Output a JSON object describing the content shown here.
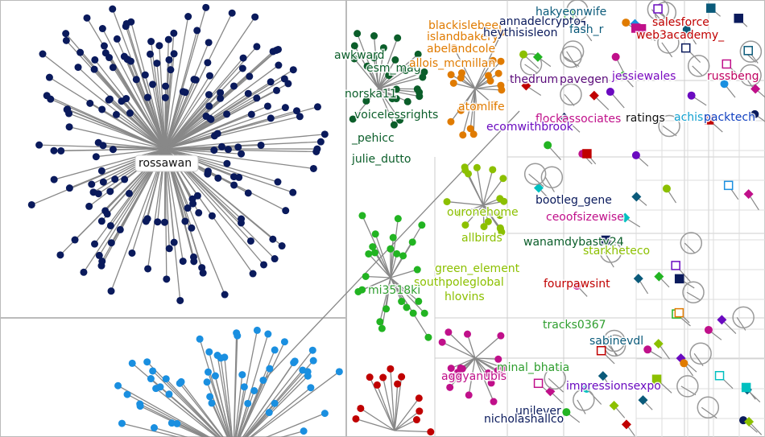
{
  "labels": [
    {
      "text": "rossawan",
      "color": "#111111"
    },
    {
      "text": "awkward",
      "color": "#0b5e2a"
    },
    {
      "text": "esm_mag",
      "color": "#0b5e2a"
    },
    {
      "text": "norska11",
      "color": "#0b5e2a"
    },
    {
      "text": "voicelessrights",
      "color": "#0b5e2a"
    },
    {
      "text": "_pehicc",
      "color": "#0b5e2a"
    },
    {
      "text": "julie_dutto",
      "color": "#0b5e2a"
    },
    {
      "text": "blackislebeer",
      "color": "#e07b00"
    },
    {
      "text": "islandbakery",
      "color": "#e07b00"
    },
    {
      "text": "abelandcole",
      "color": "#e07b00"
    },
    {
      "text": "allois_mcmillan",
      "color": "#e07b00"
    },
    {
      "text": "atomlife",
      "color": "#e07b00"
    },
    {
      "text": "annadelcrypto",
      "color": "#0a1a5c"
    },
    {
      "text": "heythisisleon",
      "color": "#0a1a5c"
    },
    {
      "text": "hakyeonwife",
      "color": "#0a5a7a"
    },
    {
      "text": "fash_r",
      "color": "#0a5a7a"
    },
    {
      "text": "salesforce",
      "color": "#c00000"
    },
    {
      "text": "web3academy_",
      "color": "#c00000"
    },
    {
      "text": "thedrum",
      "color": "#5a0a7a"
    },
    {
      "text": "pavegen",
      "color": "#5a0a7a"
    },
    {
      "text": "jessiewales",
      "color": "#7a0ac0"
    },
    {
      "text": "russbeng",
      "color": "#c00060"
    },
    {
      "text": "flockassociates",
      "color": "#c0108a"
    },
    {
      "text": "ratings",
      "color": "#111111"
    },
    {
      "text": "achisp",
      "color": "#10a0d0"
    },
    {
      "text": "packtech",
      "color": "#1040c0"
    },
    {
      "text": "ecomwithbrook",
      "color": "#6a0ac0"
    },
    {
      "text": "bootleg_gene",
      "color": "#0a1a5c"
    },
    {
      "text": "ouronehome",
      "color": "#8cc000"
    },
    {
      "text": "ceoofsizewise",
      "color": "#c0108a"
    },
    {
      "text": "allbirds",
      "color": "#8cc000"
    },
    {
      "text": "wanamdybasty24",
      "color": "#0b5e2a"
    },
    {
      "text": "starkheteco",
      "color": "#8cc000"
    },
    {
      "text": "green_element",
      "color": "#8cc000"
    },
    {
      "text": "southpoleglobal",
      "color": "#8cc000"
    },
    {
      "text": "hlovins",
      "color": "#8cc000"
    },
    {
      "text": "mi3518ki",
      "color": "#2e9e2e"
    },
    {
      "text": "fourpawsint",
      "color": "#c00000"
    },
    {
      "text": "tracks0367",
      "color": "#2e9e2e"
    },
    {
      "text": "sabinevdl",
      "color": "#0a5a7a"
    },
    {
      "text": "minal_bhatia",
      "color": "#2e9e2e"
    },
    {
      "text": "aggyanubis",
      "color": "#c0108a"
    },
    {
      "text": "impressionsexpo",
      "color": "#6a0ac0"
    },
    {
      "text": "unilever",
      "color": "#0a1a5c"
    },
    {
      "text": "nicholashallco",
      "color": "#0a1a5c"
    }
  ]
}
